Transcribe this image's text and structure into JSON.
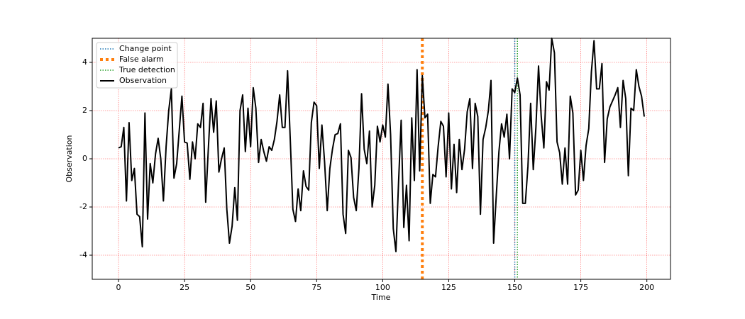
{
  "chart_data": {
    "type": "line",
    "xlabel": "Time",
    "ylabel": "Observation",
    "x": [
      0,
      1,
      2,
      3,
      4,
      5,
      6,
      7,
      8,
      9,
      10,
      11,
      12,
      13,
      14,
      15,
      16,
      17,
      18,
      19,
      20,
      21,
      22,
      23,
      24,
      25,
      26,
      27,
      28,
      29,
      30,
      31,
      32,
      33,
      34,
      35,
      36,
      37,
      38,
      39,
      40,
      41,
      42,
      43,
      44,
      45,
      46,
      47,
      48,
      49,
      50,
      51,
      52,
      53,
      54,
      55,
      56,
      57,
      58,
      59,
      60,
      61,
      62,
      63,
      64,
      65,
      66,
      67,
      68,
      69,
      70,
      71,
      72,
      73,
      74,
      75,
      76,
      77,
      78,
      79,
      80,
      81,
      82,
      83,
      84,
      85,
      86,
      87,
      88,
      89,
      90,
      91,
      92,
      93,
      94,
      95,
      96,
      97,
      98,
      99,
      100,
      101,
      102,
      103,
      104,
      105,
      106,
      107,
      108,
      109,
      110,
      111,
      112,
      113,
      114,
      115,
      116,
      117,
      118,
      119,
      120,
      121,
      122,
      123,
      124,
      125,
      126,
      127,
      128,
      129,
      130,
      131,
      132,
      133,
      134,
      135,
      136,
      137,
      138,
      139,
      140,
      141,
      142,
      143,
      144,
      145,
      146,
      147,
      148,
      149,
      150,
      151,
      152,
      153,
      154,
      155,
      156,
      157,
      158,
      159,
      160,
      161,
      162,
      163,
      164,
      165,
      166,
      167,
      168,
      169,
      170,
      171,
      172,
      173,
      174,
      175,
      176,
      177,
      178,
      179,
      180,
      181,
      182,
      183,
      184,
      185,
      186,
      187,
      188,
      189,
      190,
      191,
      192,
      193,
      194,
      195,
      196,
      197,
      198,
      199
    ],
    "series": [
      {
        "name": "Observation",
        "color": "#000000",
        "values": [
          0.45,
          0.5,
          1.3,
          -1.75,
          1.5,
          -0.9,
          -0.4,
          -2.3,
          -2.4,
          -3.65,
          1.9,
          -2.5,
          -0.2,
          -1.0,
          0.2,
          0.85,
          0.0,
          -1.75,
          0.5,
          2.0,
          2.9,
          -0.8,
          -0.2,
          1.2,
          2.6,
          0.7,
          0.65,
          -0.85,
          0.7,
          0.0,
          1.45,
          1.3,
          2.3,
          -1.8,
          0.4,
          2.5,
          1.1,
          2.4,
          -0.55,
          0.0,
          0.45,
          -2.1,
          -3.5,
          -2.8,
          -1.2,
          -2.55,
          2.0,
          2.65,
          0.3,
          2.1,
          0.5,
          2.95,
          2.1,
          -0.15,
          0.8,
          0.3,
          -0.1,
          0.5,
          0.35,
          0.8,
          1.55,
          2.65,
          1.3,
          1.3,
          3.65,
          0.8,
          -2.1,
          -2.6,
          -1.25,
          -2.15,
          -0.5,
          -1.15,
          -1.3,
          1.5,
          2.35,
          2.2,
          -0.4,
          1.4,
          -0.15,
          -2.15,
          -0.4,
          0.4,
          1.0,
          1.05,
          1.45,
          -2.3,
          -3.1,
          0.35,
          0.05,
          -1.6,
          -2.15,
          -0.4,
          2.7,
          0.4,
          -0.2,
          1.15,
          -2.0,
          -1.1,
          1.35,
          0.7,
          1.4,
          0.9,
          3.1,
          1.0,
          -2.9,
          -3.85,
          -1.0,
          1.6,
          -2.85,
          -1.1,
          -3.4,
          1.7,
          -0.9,
          3.7,
          -0.5,
          3.45,
          1.7,
          1.85,
          -1.85,
          -0.65,
          -0.75,
          0.5,
          1.55,
          1.35,
          -0.75,
          1.9,
          -1.25,
          0.6,
          -1.4,
          0.8,
          -0.45,
          0.4,
          1.95,
          2.5,
          -0.4,
          2.3,
          1.75,
          -2.3,
          0.8,
          1.3,
          2.0,
          3.25,
          -3.5,
          -1.5,
          0.3,
          1.45,
          0.9,
          1.85,
          0.0,
          2.9,
          2.75,
          3.35,
          2.65,
          -1.85,
          -1.85,
          -0.3,
          2.3,
          -0.45,
          1.3,
          3.85,
          1.75,
          0.45,
          3.2,
          2.85,
          5.0,
          4.4,
          0.7,
          0.25,
          -1.05,
          0.45,
          -1.05,
          2.6,
          1.9,
          -1.5,
          -1.3,
          0.35,
          -0.9,
          0.55,
          1.25,
          3.6,
          4.9,
          2.9,
          2.9,
          3.95,
          -0.15,
          1.65,
          2.15,
          2.4,
          2.65,
          2.95,
          1.3,
          3.25,
          2.5,
          -0.7,
          2.1,
          2.0,
          3.7,
          3.0,
          2.6,
          1.75
        ]
      }
    ],
    "vlines": [
      {
        "name": "Change point",
        "color": "#1f77b4",
        "x": 150
      },
      {
        "name": "False alarm",
        "color": "#ff7f0e",
        "x": 115
      },
      {
        "name": "True detection",
        "color": "#2ca02c",
        "x": 151
      }
    ],
    "xlim": [
      -9.95,
      208.95
    ],
    "ylim": [
      -5,
      5
    ],
    "xticks": [
      0,
      25,
      50,
      75,
      100,
      125,
      150,
      175,
      200
    ],
    "yticks": [
      -4,
      -2,
      0,
      2,
      4
    ],
    "grid": true,
    "grid_color": "#ff0000",
    "legend": "upper left"
  }
}
